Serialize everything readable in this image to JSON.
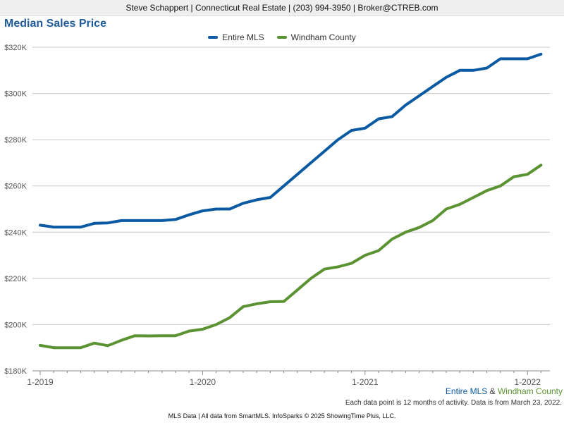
{
  "header": {
    "text": "Steve Schappert | Connecticut Real Estate | (203) 994-3950 | Broker@CTREB.com"
  },
  "colors": {
    "series_1": "#0a5aa3",
    "series_2": "#5b9332",
    "title": "#1f5c99",
    "grid": "#c8c8c8",
    "axis": "#555555"
  },
  "chart_data": {
    "type": "line",
    "title": "Median Sales Price",
    "xlabel": "",
    "ylabel": "",
    "ylim": [
      180000,
      320000
    ],
    "y_ticks": [
      180000,
      200000,
      220000,
      240000,
      260000,
      280000,
      300000,
      320000
    ],
    "y_tick_labels": [
      "$180K",
      "$200K",
      "$220K",
      "$240K",
      "$260K",
      "$280K",
      "$300K",
      "$320K"
    ],
    "x_tick_labels": [
      "1-2019",
      "1-2020",
      "1-2021",
      "1-2022"
    ],
    "x": [
      "1-2019",
      "2-2019",
      "3-2019",
      "4-2019",
      "5-2019",
      "6-2019",
      "7-2019",
      "8-2019",
      "9-2019",
      "10-2019",
      "11-2019",
      "12-2019",
      "1-2020",
      "2-2020",
      "3-2020",
      "4-2020",
      "5-2020",
      "6-2020",
      "7-2020",
      "8-2020",
      "9-2020",
      "10-2020",
      "11-2020",
      "12-2020",
      "1-2021",
      "2-2021",
      "3-2021",
      "4-2021",
      "5-2021",
      "6-2021",
      "7-2021",
      "8-2021",
      "9-2021",
      "10-2021",
      "11-2021",
      "12-2021",
      "1-2022",
      "2-2022"
    ],
    "grid": true,
    "legend": "top-center",
    "series": [
      {
        "name": "Entire MLS",
        "values": [
          243000,
          242200,
          242200,
          242200,
          243800,
          244000,
          245000,
          245000,
          245000,
          245000,
          245500,
          247500,
          249200,
          250000,
          250000,
          252500,
          254000,
          255000,
          260000,
          265000,
          270000,
          275000,
          280000,
          284000,
          285000,
          289000,
          290000,
          295000,
          299000,
          303000,
          307000,
          310000,
          310000,
          311000,
          315000,
          315000,
          315000,
          317000
        ]
      },
      {
        "name": "Windham County",
        "values": [
          191000,
          190000,
          190000,
          190000,
          192000,
          190900,
          193200,
          195200,
          195100,
          195200,
          195200,
          197200,
          198000,
          200000,
          203000,
          207800,
          209000,
          209900,
          210000,
          215000,
          220000,
          224000,
          225000,
          226500,
          230000,
          232000,
          237000,
          240000,
          242000,
          245000,
          250000,
          252000,
          255000,
          258000,
          260000,
          264000,
          265000,
          269000
        ]
      }
    ]
  },
  "series_note": {
    "first": "Entire MLS",
    "amp": "&",
    "second": "Windham County"
  },
  "footnote": "Each data point is 12 months of activity. Data is from March 23, 2022.",
  "footer": "MLS Data | All data from SmartMLS. InfoSparks © 2025 ShowingTime Plus, LLC."
}
